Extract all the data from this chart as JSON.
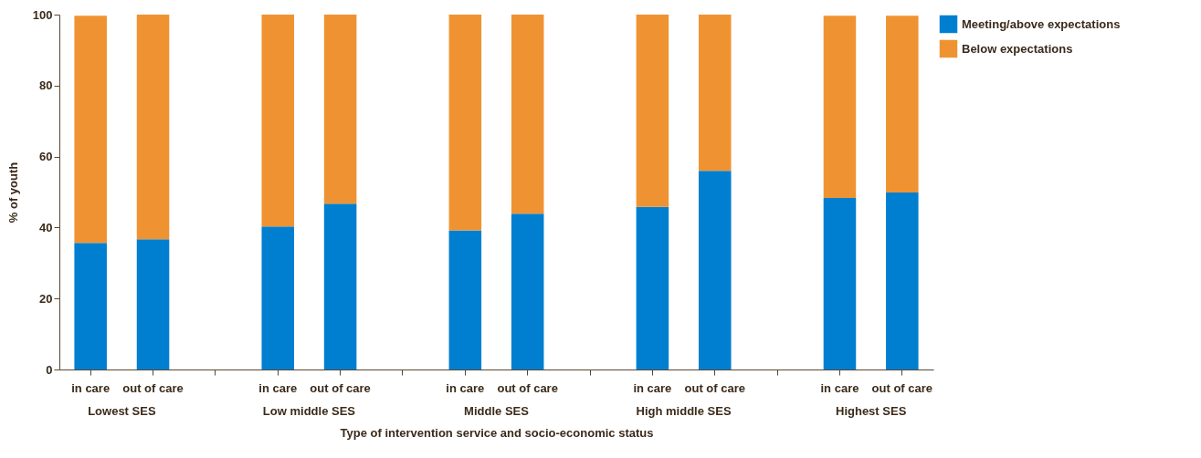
{
  "chart_data": {
    "type": "bar",
    "stacked": true,
    "xlabel": "Type of intervention service and socio-economic status",
    "ylabel": "% of youth",
    "categories": [
      "in care",
      "out of care",
      null,
      "in care",
      "out of care",
      null,
      "in care",
      "out of care",
      null,
      "in care",
      "out of care",
      null,
      "in care",
      "out of care"
    ],
    "series": [
      {
        "name": "Meeting/above expectations",
        "color": "#007fd0",
        "values": [
          35.7,
          36.7,
          null,
          40.3,
          46.7,
          null,
          39.2,
          43.9,
          null,
          45.8,
          56.0,
          null,
          48.3,
          49.9
        ]
      },
      {
        "name": "Below expectations",
        "color": "#ef9332",
        "values": [
          64.0,
          63.3,
          null,
          59.7,
          53.3,
          null,
          60.8,
          56.1,
          null,
          54.2,
          44.0,
          null,
          51.4,
          49.8
        ]
      }
    ],
    "ylim": [
      0,
      100
    ],
    "yticks": [
      0,
      20,
      40,
      60,
      80,
      100
    ],
    "grid": false,
    "legend": "top right",
    "annotations": [
      "Lowest SES",
      "Low middle SES",
      "Middle SES",
      "High middle SES",
      "Highest SES"
    ]
  }
}
